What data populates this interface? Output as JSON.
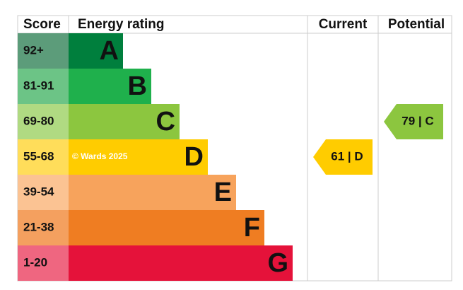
{
  "header": {
    "score": "Score",
    "rating": "Energy rating",
    "current": "Current",
    "potential": "Potential"
  },
  "bands": [
    {
      "score": "92+",
      "letter": "A",
      "color": "#007f3d",
      "score_color": "#5c9c7a"
    },
    {
      "score": "81-91",
      "letter": "B",
      "color": "#1fb04c",
      "score_color": "#6cc486"
    },
    {
      "score": "69-80",
      "letter": "C",
      "color": "#8cc63f",
      "score_color": "#b0da82"
    },
    {
      "score": "55-68",
      "letter": "D",
      "color": "#ffcc00",
      "score_color": "#ffdd5a"
    },
    {
      "score": "39-54",
      "letter": "E",
      "color": "#f7a35c",
      "score_color": "#fbc393"
    },
    {
      "score": "21-38",
      "letter": "F",
      "color": "#ef7d22",
      "score_color": "#f4a05f"
    },
    {
      "score": "1-20",
      "letter": "G",
      "color": "#e5123a",
      "score_color": "#ef6680"
    }
  ],
  "current": {
    "label": "61 | D",
    "color": "#ffcc00"
  },
  "potential": {
    "label": "79 | C",
    "color": "#8cc63f"
  },
  "watermark": "© Wards 2025"
}
